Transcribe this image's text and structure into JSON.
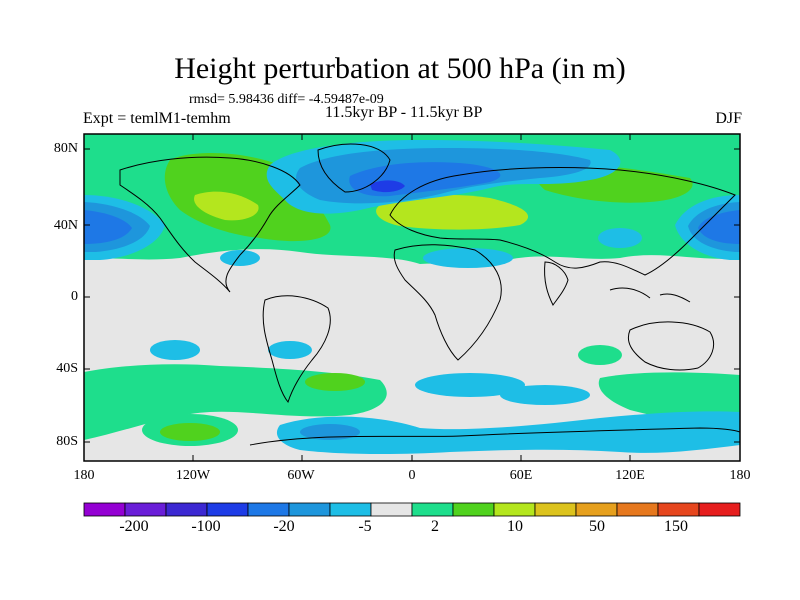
{
  "header": {
    "title": "Height perturbation at 500 hPa (in m)",
    "stats": "rmsd= 5.98436 diff= -4.59487e-09",
    "experiment": "Expt = temlM1-temhm",
    "period": "11.5kyr BP - 11.5kyr BP",
    "season": "DJF"
  },
  "axes": {
    "lat_labels": [
      "80N",
      "40N",
      "0",
      "40S",
      "80S"
    ],
    "lon_labels": [
      "180",
      "120W",
      "60W",
      "0",
      "60E",
      "120E",
      "180"
    ]
  },
  "colorbar": {
    "colors": [
      "#9400d3",
      "#6a1ed8",
      "#3c28d2",
      "#1e3ce6",
      "#1e78e6",
      "#1e96dc",
      "#1ebee6",
      "#e6e6e6",
      "#1ede8c",
      "#50d21e",
      "#b4e61e",
      "#dcc31e",
      "#e6a01e",
      "#e6781e",
      "#e6461e",
      "#e61e1e"
    ],
    "labels": [
      "-200",
      "-100",
      "-20",
      "-5",
      "2",
      "10",
      "50",
      "150"
    ]
  }
}
